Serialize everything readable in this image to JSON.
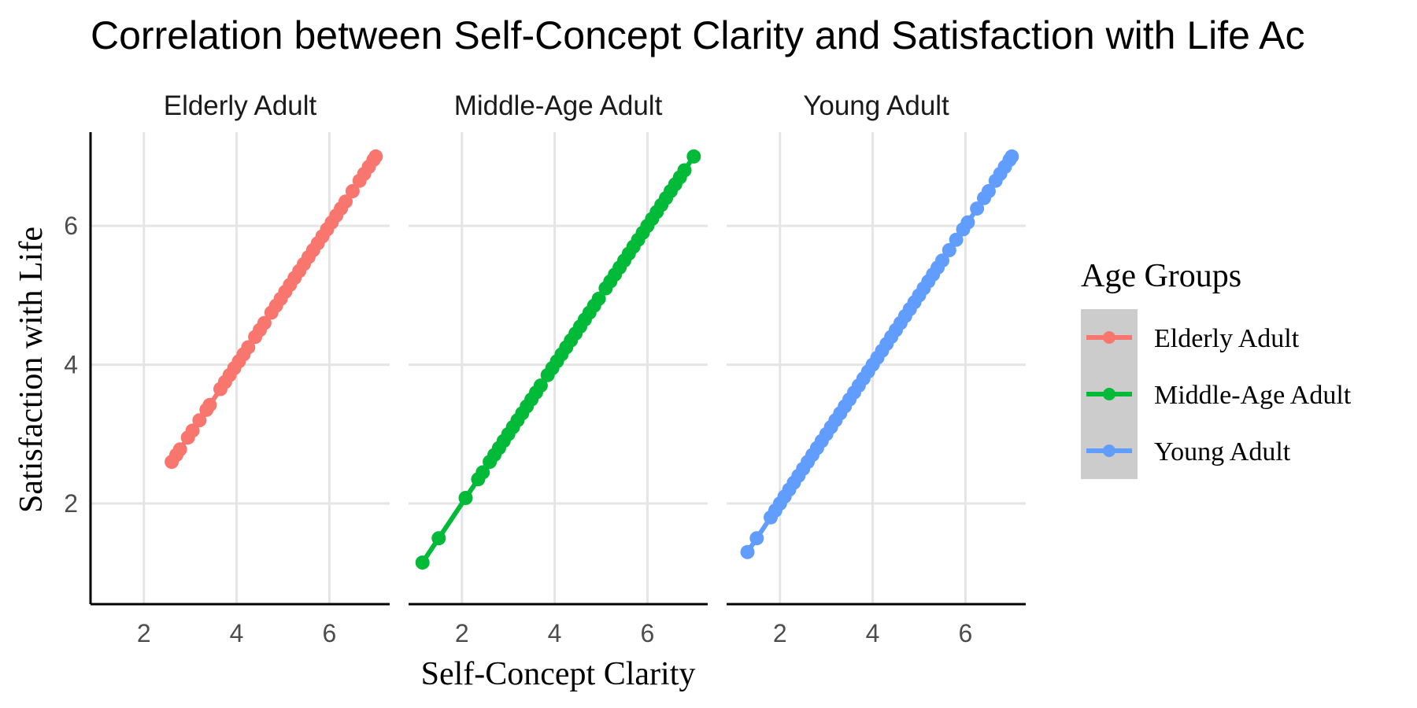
{
  "chart_data": {
    "type": "line",
    "title": "Correlation between Self-Concept Clarity and Satisfaction with Life Ac",
    "xlabel": "Self-Concept Clarity",
    "ylabel": "Satisfaction with Life",
    "xlim": [
      0.85,
      7.3
    ],
    "ylim": [
      0.55,
      7.35
    ],
    "xticks": [
      2,
      4,
      6
    ],
    "yticks": [
      2,
      4,
      6
    ],
    "grid": true,
    "legend": {
      "title": "Age Groups",
      "placement": "right"
    },
    "series": [
      {
        "name": "Elderly Adult",
        "color": "#F8766D",
        "x": [
          2.6,
          2.7,
          2.78,
          2.95,
          3.05,
          3.2,
          3.35,
          3.42,
          3.65,
          3.75,
          3.85,
          3.95,
          4.05,
          4.15,
          4.25,
          4.4,
          4.5,
          4.6,
          4.75,
          4.85,
          4.95,
          5.05,
          5.15,
          5.25,
          5.35,
          5.45,
          5.55,
          5.65,
          5.75,
          5.85,
          5.95,
          6.05,
          6.15,
          6.25,
          6.35,
          6.5,
          6.65,
          6.75,
          6.85,
          6.95,
          7.0
        ],
        "y": [
          2.6,
          2.7,
          2.78,
          2.95,
          3.05,
          3.2,
          3.35,
          3.42,
          3.65,
          3.75,
          3.85,
          3.95,
          4.05,
          4.15,
          4.25,
          4.4,
          4.5,
          4.6,
          4.75,
          4.85,
          4.95,
          5.05,
          5.15,
          5.25,
          5.35,
          5.45,
          5.55,
          5.65,
          5.75,
          5.85,
          5.95,
          6.05,
          6.15,
          6.25,
          6.35,
          6.5,
          6.65,
          6.75,
          6.85,
          6.95,
          7.0
        ]
      },
      {
        "name": "Middle-Age Adult",
        "color": "#00BA38",
        "x": [
          1.15,
          1.5,
          2.08,
          2.35,
          2.45,
          2.6,
          2.7,
          2.8,
          2.9,
          3.0,
          3.1,
          3.2,
          3.3,
          3.4,
          3.5,
          3.6,
          3.7,
          3.85,
          3.95,
          4.05,
          4.15,
          4.25,
          4.35,
          4.45,
          4.55,
          4.65,
          4.75,
          4.85,
          4.95,
          5.1,
          5.2,
          5.3,
          5.4,
          5.5,
          5.6,
          5.7,
          5.8,
          5.9,
          6.0,
          6.1,
          6.2,
          6.3,
          6.4,
          6.5,
          6.6,
          6.7,
          6.8,
          7.0
        ],
        "y": [
          1.15,
          1.5,
          2.08,
          2.35,
          2.45,
          2.6,
          2.7,
          2.8,
          2.9,
          3.0,
          3.1,
          3.2,
          3.3,
          3.4,
          3.5,
          3.6,
          3.7,
          3.85,
          3.95,
          4.05,
          4.15,
          4.25,
          4.35,
          4.45,
          4.55,
          4.65,
          4.75,
          4.85,
          4.95,
          5.1,
          5.2,
          5.3,
          5.4,
          5.5,
          5.6,
          5.7,
          5.8,
          5.9,
          6.0,
          6.1,
          6.2,
          6.3,
          6.4,
          6.5,
          6.6,
          6.7,
          6.8,
          7.0
        ]
      },
      {
        "name": "Young Adult",
        "color": "#619CFF",
        "x": [
          1.3,
          1.5,
          1.8,
          1.9,
          2.0,
          2.1,
          2.2,
          2.3,
          2.4,
          2.5,
          2.6,
          2.7,
          2.8,
          2.9,
          3.0,
          3.1,
          3.2,
          3.3,
          3.4,
          3.5,
          3.6,
          3.7,
          3.8,
          3.9,
          4.0,
          4.1,
          4.2,
          4.3,
          4.4,
          4.5,
          4.6,
          4.7,
          4.8,
          4.9,
          5.0,
          5.1,
          5.2,
          5.3,
          5.4,
          5.5,
          5.65,
          5.8,
          5.95,
          6.05,
          6.25,
          6.4,
          6.5,
          6.65,
          6.75,
          6.85,
          6.95,
          7.0
        ],
        "y": [
          1.3,
          1.5,
          1.8,
          1.9,
          2.0,
          2.1,
          2.2,
          2.3,
          2.4,
          2.5,
          2.6,
          2.7,
          2.8,
          2.9,
          3.0,
          3.1,
          3.2,
          3.3,
          3.4,
          3.5,
          3.6,
          3.7,
          3.8,
          3.9,
          4.0,
          4.1,
          4.2,
          4.3,
          4.4,
          4.5,
          4.6,
          4.7,
          4.8,
          4.9,
          5.0,
          5.1,
          5.2,
          5.3,
          5.4,
          5.5,
          5.65,
          5.8,
          5.95,
          6.05,
          6.25,
          6.4,
          6.5,
          6.65,
          6.75,
          6.85,
          6.95,
          7.0
        ]
      }
    ]
  }
}
